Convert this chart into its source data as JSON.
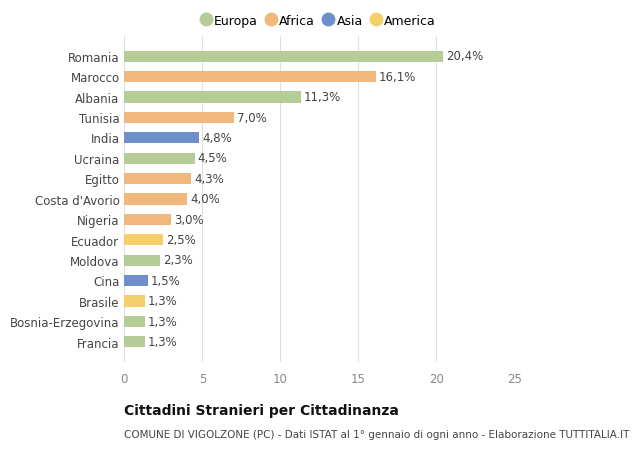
{
  "countries": [
    "Romania",
    "Marocco",
    "Albania",
    "Tunisia",
    "India",
    "Ucraina",
    "Egitto",
    "Costa d'Avorio",
    "Nigeria",
    "Ecuador",
    "Moldova",
    "Cina",
    "Brasile",
    "Bosnia-Erzegovina",
    "Francia"
  ],
  "values": [
    20.4,
    16.1,
    11.3,
    7.0,
    4.8,
    4.5,
    4.3,
    4.0,
    3.0,
    2.5,
    2.3,
    1.5,
    1.3,
    1.3,
    1.3
  ],
  "continents": [
    "Europa",
    "Africa",
    "Europa",
    "Africa",
    "Asia",
    "Europa",
    "Africa",
    "Africa",
    "Africa",
    "America",
    "Europa",
    "Asia",
    "America",
    "Europa",
    "Europa"
  ],
  "colors": {
    "Europa": "#b5cc96",
    "Africa": "#f0b87a",
    "Asia": "#6e8fc9",
    "America": "#f5d06a"
  },
  "legend_order": [
    "Europa",
    "Africa",
    "Asia",
    "America"
  ],
  "title": "Cittadini Stranieri per Cittadinanza",
  "subtitle": "COMUNE DI VIGOLZONE (PC) - Dati ISTAT al 1° gennaio di ogni anno - Elaborazione TUTTITALIA.IT",
  "xlim": [
    0,
    25
  ],
  "xticks": [
    0,
    5,
    10,
    15,
    20,
    25
  ],
  "bg_color": "#ffffff",
  "grid_color": "#e0e0e0",
  "bar_height": 0.55,
  "label_fontsize": 8.5,
  "tick_fontsize": 8.5,
  "title_fontsize": 10,
  "subtitle_fontsize": 7.5
}
